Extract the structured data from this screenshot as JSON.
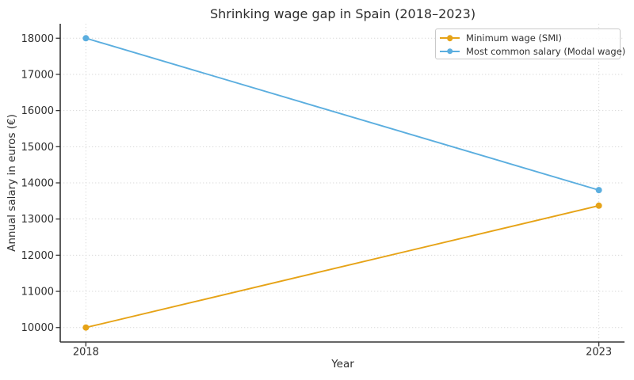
{
  "chart_data": {
    "type": "line",
    "title": "Shrinking wage gap in Spain (2018–2023)",
    "xlabel": "Year",
    "ylabel": "Annual salary in euros (€)",
    "x": [
      2018,
      2023
    ],
    "xtick_labels": [
      "2018",
      "2023"
    ],
    "yticks": [
      10000,
      11000,
      12000,
      13000,
      14000,
      15000,
      16000,
      17000,
      18000
    ],
    "xlim": [
      2017.75,
      2023.25
    ],
    "ylim": [
      9600,
      18400
    ],
    "grid": true,
    "grid_style": "dotted",
    "legend_position": "upper right",
    "series": [
      {
        "name": "Minimum wage (SMI)",
        "color": "#E6A317",
        "values": [
          10000,
          13370
        ]
      },
      {
        "name": "Most common salary (Modal wage)",
        "color": "#5BAEDF",
        "values": [
          18000,
          13800
        ]
      }
    ]
  }
}
